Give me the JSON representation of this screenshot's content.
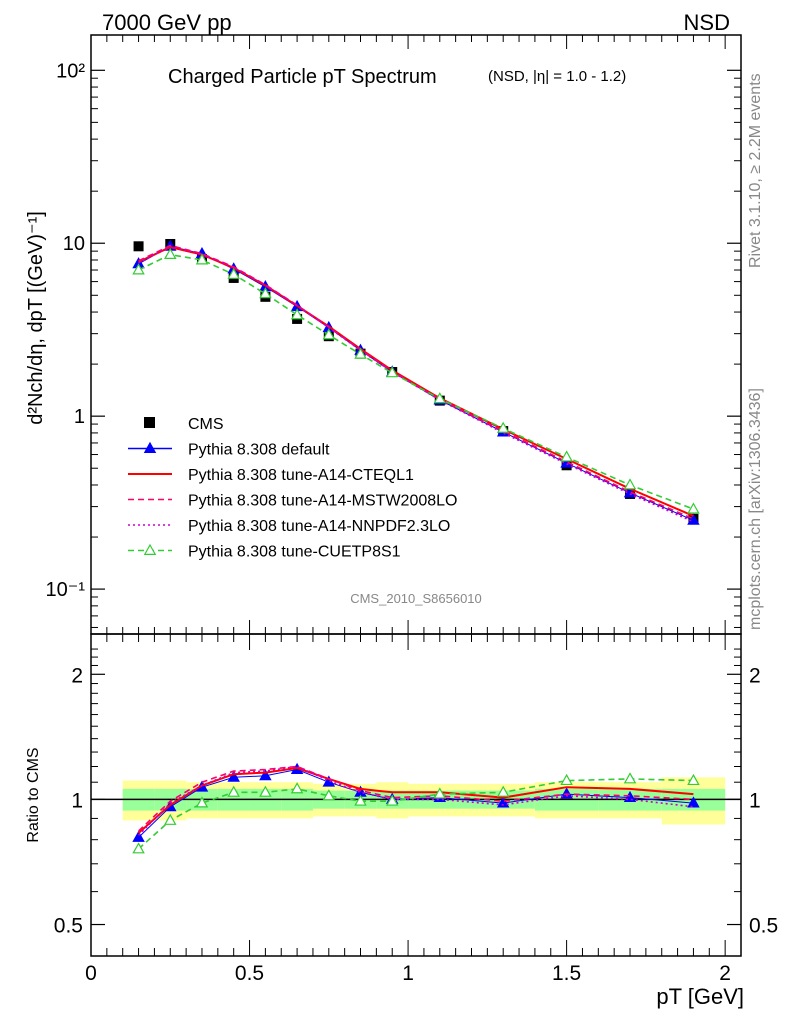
{
  "header": {
    "left": "7000 GeV pp",
    "right": "NSD"
  },
  "side_text": {
    "rivet": "Rivet 3.1.10, ≥ 2.2M events",
    "mcplots": "mcplots.cern.ch [arXiv:1306.3436]"
  },
  "analysis_id": "CMS_2010_S8656010",
  "chart_data": [
    {
      "type": "line",
      "title": "Charged Particle pT Spectrum",
      "subtitle": "(NSD, |η| = 1.0 - 1.2)",
      "xlabel": "pT [GeV]",
      "ylabel": "d²Nch/dη, dpT [(GeV)⁻¹]",
      "xlim": [
        0,
        2.05
      ],
      "ylim": [
        0.055,
        160
      ],
      "yscale": "log",
      "y_tick_labels": [
        "10⁻¹",
        "1",
        "10",
        "10²"
      ],
      "legend_position": "lower-left",
      "x": [
        0.15,
        0.25,
        0.35,
        0.45,
        0.55,
        0.65,
        0.75,
        0.85,
        0.95,
        1.1,
        1.3,
        1.5,
        1.7,
        1.9
      ],
      "series": [
        {
          "name": "CMS",
          "style": "data",
          "color": "#000000",
          "values": [
            9.6,
            9.9,
            8.1,
            6.3,
            4.9,
            3.65,
            2.9,
            2.3,
            1.8,
            1.23,
            0.82,
            0.52,
            0.355,
            0.255
          ]
        },
        {
          "name": "Pythia 8.308 default",
          "style": "triangle",
          "color": "#0000ff",
          "values": [
            7.6,
            9.6,
            8.7,
            7.1,
            5.6,
            4.3,
            3.25,
            2.4,
            1.8,
            1.24,
            0.81,
            0.535,
            0.36,
            0.25
          ]
        },
        {
          "name": "Pythia 8.308 tune-A14-CTEQL1",
          "style": "solid",
          "color": "#ff0000",
          "values": [
            7.8,
            9.5,
            8.6,
            7.2,
            5.7,
            4.35,
            3.3,
            2.45,
            1.84,
            1.27,
            0.84,
            0.565,
            0.38,
            0.265
          ]
        },
        {
          "name": "Pythia 8.308 tune-A14-MSTW2008LO",
          "style": "dashed",
          "color": "#ff0066",
          "values": [
            7.9,
            9.7,
            8.7,
            7.3,
            5.75,
            4.38,
            3.28,
            2.42,
            1.82,
            1.25,
            0.82,
            0.545,
            0.365,
            0.255
          ]
        },
        {
          "name": "Pythia 8.308 tune-A14-NNPDF2.3LO",
          "style": "dotted",
          "color": "#cc00cc",
          "values": [
            7.7,
            9.6,
            8.65,
            7.25,
            5.7,
            4.36,
            3.25,
            2.4,
            1.8,
            1.24,
            0.8,
            0.53,
            0.355,
            0.245
          ]
        },
        {
          "name": "Pythia 8.308 tune-CUETP8S1",
          "style": "dashed-open-triangle",
          "color": "#33cc33",
          "values": [
            7.0,
            8.6,
            8.0,
            6.6,
            5.1,
            3.85,
            2.95,
            2.28,
            1.78,
            1.26,
            0.85,
            0.58,
            0.4,
            0.29
          ]
        }
      ]
    },
    {
      "type": "line",
      "ylabel": "Ratio to CMS",
      "xlabel": "pT [GeV]",
      "xlim": [
        0,
        2.05
      ],
      "ylim": [
        0.42,
        2.5
      ],
      "yscale": "log",
      "y_tick_labels": [
        "0.5",
        "1",
        "2"
      ],
      "x_tick_labels": [
        "0",
        "0.5",
        "1",
        "1.5",
        "2"
      ],
      "x": [
        0.15,
        0.25,
        0.35,
        0.45,
        0.55,
        0.65,
        0.75,
        0.85,
        0.95,
        1.1,
        1.3,
        1.5,
        1.7,
        1.9
      ],
      "bands": {
        "bins": [
          [
            0.1,
            0.2
          ],
          [
            0.2,
            0.3
          ],
          [
            0.3,
            0.4
          ],
          [
            0.4,
            0.5
          ],
          [
            0.5,
            0.6
          ],
          [
            0.6,
            0.7
          ],
          [
            0.7,
            0.8
          ],
          [
            0.8,
            0.9
          ],
          [
            0.9,
            1.0
          ],
          [
            1.0,
            1.2
          ],
          [
            1.2,
            1.4
          ],
          [
            1.4,
            1.6
          ],
          [
            1.6,
            1.8
          ],
          [
            1.8,
            2.0
          ]
        ],
        "stat": [
          0.06,
          0.06,
          0.06,
          0.06,
          0.06,
          0.06,
          0.05,
          0.05,
          0.05,
          0.05,
          0.05,
          0.06,
          0.06,
          0.06
        ],
        "total": [
          0.11,
          0.11,
          0.1,
          0.1,
          0.1,
          0.1,
          0.09,
          0.09,
          0.1,
          0.09,
          0.09,
          0.1,
          0.1,
          0.13
        ],
        "stat_color": "#99ff99",
        "total_color": "#ffff99"
      },
      "series": [
        {
          "name": "Pythia 8.308 default",
          "style": "triangle",
          "color": "#0000ff",
          "values": [
            0.81,
            0.96,
            1.07,
            1.13,
            1.14,
            1.18,
            1.1,
            1.04,
            1.0,
            1.01,
            0.98,
            1.03,
            1.01,
            0.98
          ]
        },
        {
          "name": "Pythia 8.308 tune-A14-CTEQL1",
          "style": "solid",
          "color": "#ff0000",
          "values": [
            0.83,
            0.97,
            1.08,
            1.15,
            1.16,
            1.19,
            1.12,
            1.06,
            1.04,
            1.04,
            1.01,
            1.07,
            1.06,
            1.03
          ]
        },
        {
          "name": "Pythia 8.308 tune-A14-MSTW2008LO",
          "style": "dashed",
          "color": "#ff0066",
          "values": [
            0.84,
            0.99,
            1.1,
            1.17,
            1.18,
            1.2,
            1.12,
            1.05,
            1.01,
            1.02,
            0.99,
            1.03,
            1.02,
            1.0
          ]
        },
        {
          "name": "Pythia 8.308 tune-A14-NNPDF2.3LO",
          "style": "dotted",
          "color": "#cc00cc",
          "values": [
            0.82,
            0.98,
            1.08,
            1.16,
            1.17,
            1.2,
            1.11,
            1.04,
            1.0,
            1.0,
            0.97,
            1.02,
            1.0,
            0.96
          ]
        },
        {
          "name": "Pythia 8.308 tune-CUETP8S1",
          "style": "dashed-open-triangle",
          "color": "#33cc33",
          "values": [
            0.76,
            0.89,
            0.98,
            1.04,
            1.04,
            1.06,
            1.02,
            0.99,
            0.99,
            1.03,
            1.04,
            1.11,
            1.12,
            1.11
          ]
        }
      ]
    }
  ]
}
